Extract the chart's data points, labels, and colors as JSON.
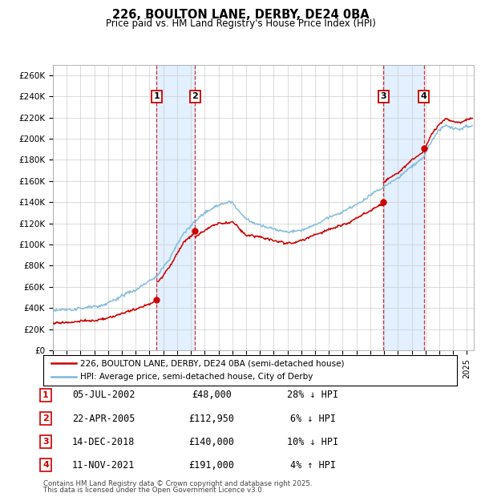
{
  "title": "226, BOULTON LANE, DERBY, DE24 0BA",
  "subtitle": "Price paid vs. HM Land Registry's House Price Index (HPI)",
  "ylabel_ticks": [
    "£0",
    "£20K",
    "£40K",
    "£60K",
    "£80K",
    "£100K",
    "£120K",
    "£140K",
    "£160K",
    "£180K",
    "£200K",
    "£220K",
    "£240K",
    "£260K"
  ],
  "ytick_values": [
    0,
    20000,
    40000,
    60000,
    80000,
    100000,
    120000,
    140000,
    160000,
    180000,
    200000,
    220000,
    240000,
    260000
  ],
  "xlim_start": 1995.0,
  "xlim_end": 2025.5,
  "ylim": [
    0,
    270000
  ],
  "legend_line1": "226, BOULTON LANE, DERBY, DE24 0BA (semi-detached house)",
  "legend_line2": "HPI: Average price, semi-detached house, City of Derby",
  "transactions": [
    {
      "num": 1,
      "date": "05-JUL-2002",
      "price": 48000,
      "price_str": "£48,000",
      "pct": "28%",
      "dir": "↓",
      "year": 2002.52
    },
    {
      "num": 2,
      "date": "22-APR-2005",
      "price": 112950,
      "price_str": "£112,950",
      "pct": "6%",
      "dir": "↓",
      "year": 2005.3
    },
    {
      "num": 3,
      "date": "14-DEC-2018",
      "price": 140000,
      "price_str": "£140,000",
      "pct": "10%",
      "dir": "↓",
      "year": 2018.95
    },
    {
      "num": 4,
      "date": "11-NOV-2021",
      "price": 191000,
      "price_str": "£191,000",
      "pct": "4%",
      "dir": "↑",
      "year": 2021.87
    }
  ],
  "footnote1": "Contains HM Land Registry data © Crown copyright and database right 2025.",
  "footnote2": "This data is licensed under the Open Government Licence v3.0.",
  "hpi_color": "#7ab8d9",
  "price_color": "#cc0000",
  "shade_color": "#ddeeff",
  "grid_color": "#cccccc",
  "annotation_box_color": "#cc0000",
  "background": "#ffffff"
}
